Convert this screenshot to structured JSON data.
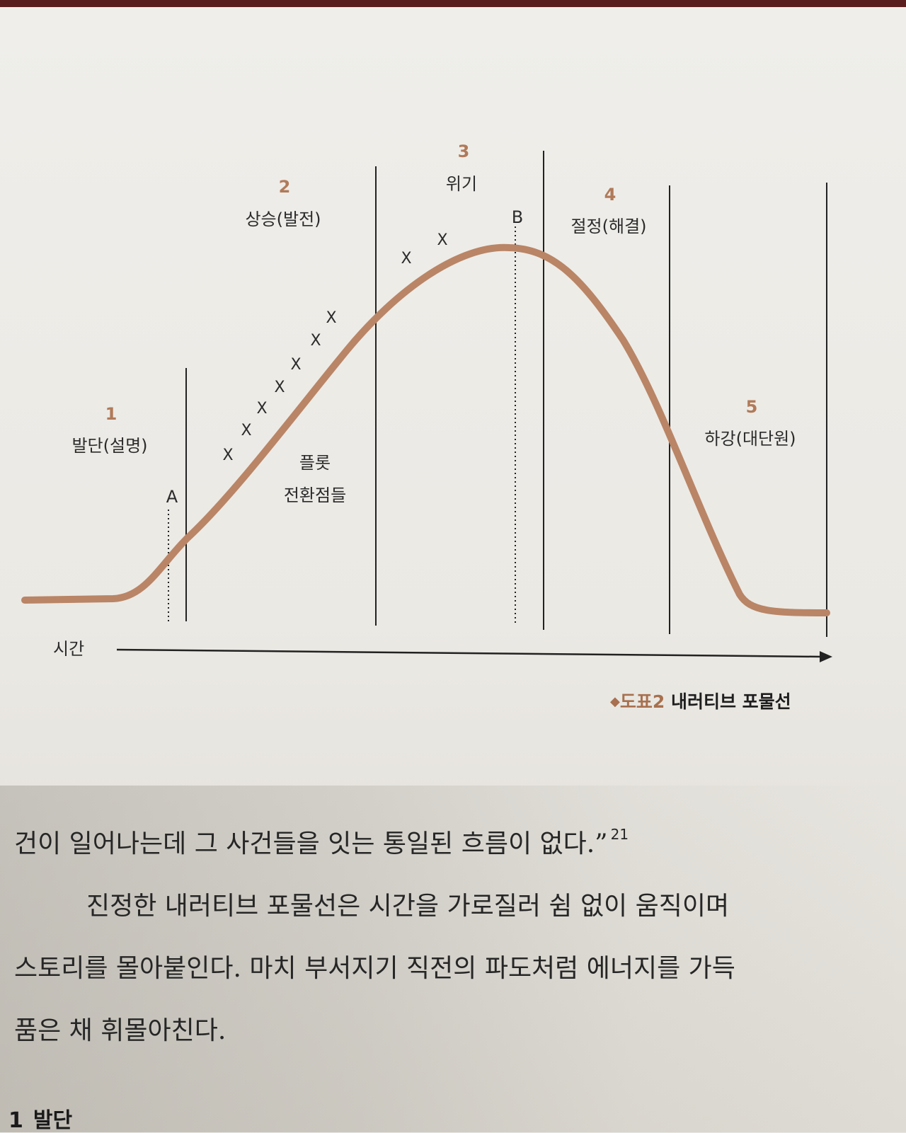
{
  "diagram": {
    "stages": [
      {
        "number": "1",
        "label": "발단(설명)"
      },
      {
        "number": "2",
        "label": "상승(발전)"
      },
      {
        "number": "3",
        "label": "위기"
      },
      {
        "number": "4",
        "label": "절정(해결)"
      },
      {
        "number": "5",
        "label": "하강(대단원)"
      }
    ],
    "markers": {
      "a": "A",
      "b": "B"
    },
    "turning_points_label": [
      "플롯",
      "전환점들"
    ],
    "turning_point_mark": "X",
    "time_axis_label": "시간",
    "curve_color": "#b98566",
    "number_color": "#b07a5a"
  },
  "caption": {
    "figure": "도표2",
    "title": "내러티브 포물선"
  },
  "body": {
    "line1": "건이 일어나는데 그 사건들을 잇는 통일된 흐름이 없다.”",
    "footnote": "21",
    "line2": "진정한 내러티브 포물선은 시간을 가로질러 쉼 없이 움직이며",
    "line3": "스토리를 몰아붙인다. 마치 부서지기 직전의 파도처럼 에너지를 가득",
    "line4": "품은 채 휘몰아친다."
  },
  "footer": {
    "chapter_number": "1",
    "chapter_title": "발단"
  }
}
